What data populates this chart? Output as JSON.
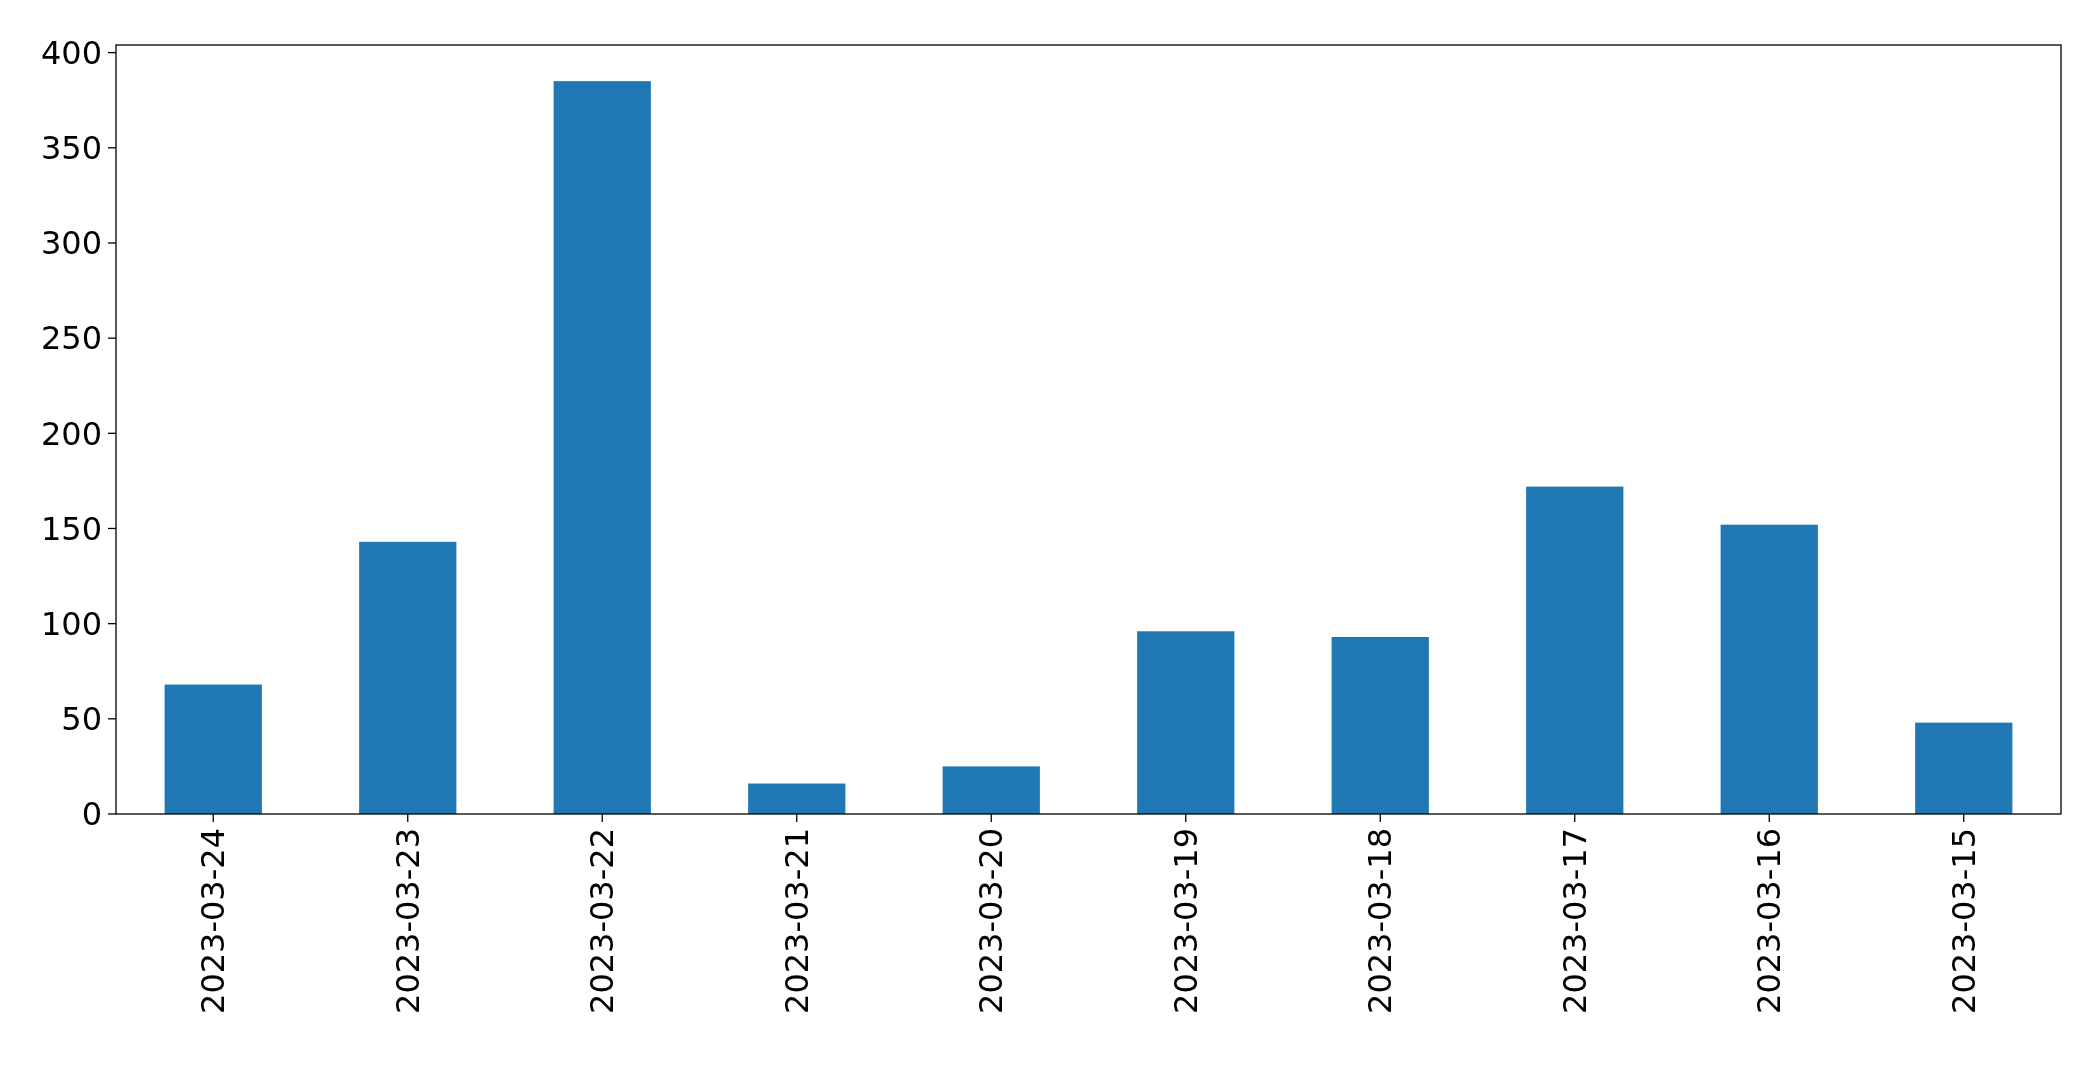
{
  "chart_data": {
    "type": "bar",
    "categories": [
      "2023-03-24",
      "2023-03-23",
      "2023-03-22",
      "2023-03-21",
      "2023-03-20",
      "2023-03-19",
      "2023-03-18",
      "2023-03-17",
      "2023-03-16",
      "2023-03-15"
    ],
    "values": [
      68,
      143,
      385,
      16,
      25,
      96,
      93,
      172,
      152,
      48
    ],
    "color": "#1f77b4",
    "ylim": [
      0,
      404
    ],
    "yticks": [
      0,
      50,
      100,
      150,
      200,
      250,
      300,
      350,
      400
    ]
  }
}
